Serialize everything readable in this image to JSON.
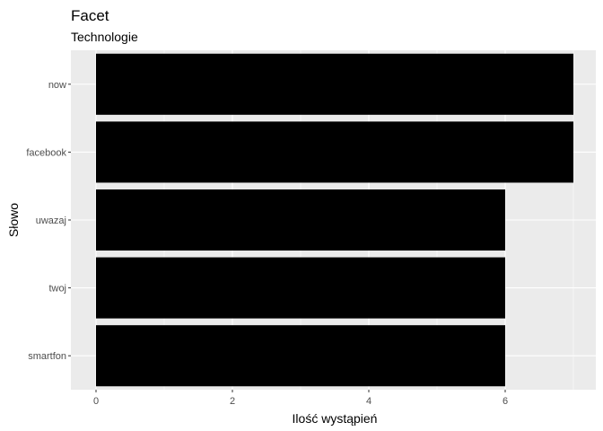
{
  "chart_data": {
    "type": "bar",
    "orientation": "horizontal",
    "title": "Facet",
    "subtitle": "Technologie",
    "xlabel": "Ilość wystąpień",
    "ylabel": "Słowo",
    "categories": [
      "now",
      "facebook",
      "uwazaj",
      "twoj",
      "smartfon"
    ],
    "values": [
      7,
      7,
      6,
      6,
      6
    ],
    "xlim": [
      0,
      7
    ],
    "xticks": [
      "0",
      "2",
      "4",
      "6"
    ],
    "grid": true,
    "legend": "none",
    "colors": {
      "bar": "#000000",
      "panel": "#ebebeb",
      "grid_major": "#ffffff",
      "tick_text": "#4d4d4d"
    }
  }
}
